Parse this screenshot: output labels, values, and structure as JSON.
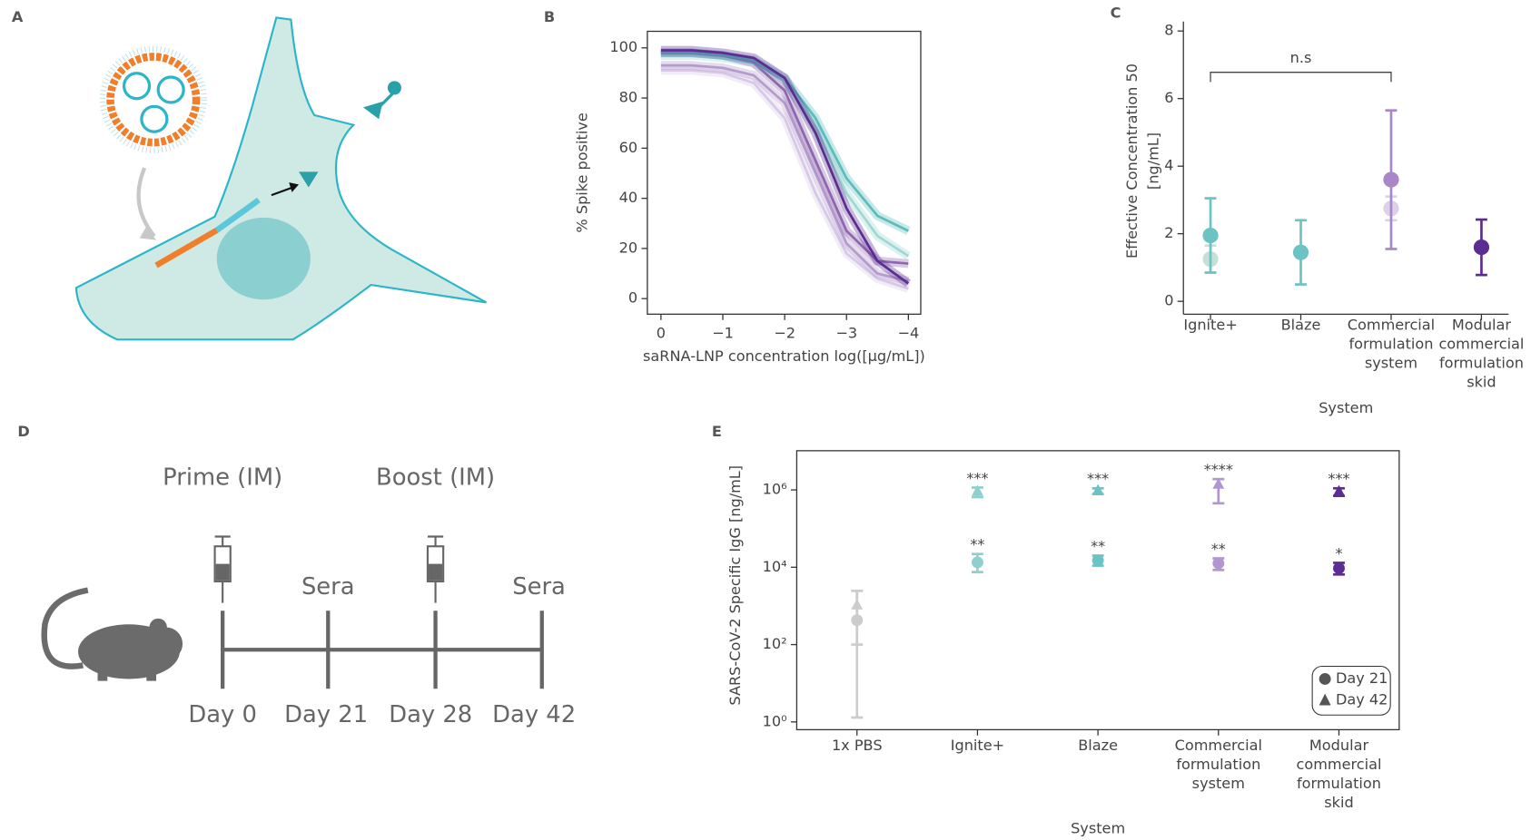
{
  "panel_labels": [
    "A",
    "B",
    "C",
    "D",
    "E"
  ],
  "timeline": {
    "prime": "Prime (IM)",
    "boost": "Boost (IM)",
    "sera": [
      "Sera",
      "Sera"
    ],
    "days": [
      "Day 0",
      "Day 21",
      "Day 28",
      "Day 42"
    ]
  },
  "chart_data": [
    {
      "type": "line",
      "xlabel": "saRNA-LNP concentration log([µg/mL])",
      "ylabel": "% Spike positive",
      "x": [
        0,
        -0.5,
        -1,
        -1.5,
        -2,
        -2.5,
        -3,
        -3.5,
        -4
      ],
      "xlim": [
        0.22,
        -4.2
      ],
      "xticks": [
        0,
        {
          "value": -1,
          "label": "−1"
        },
        {
          "value": -2,
          "label": "−2"
        },
        {
          "value": -3,
          "label": "−3"
        },
        {
          "value": -4,
          "label": "−4"
        }
      ],
      "ylim": [
        -6.2,
        106.6
      ],
      "yticks": [
        0,
        20,
        40,
        60,
        80,
        100
      ],
      "series": [
        {
          "color": "#d6c8e6",
          "values": [
            91,
            91,
            90,
            86,
            72,
            42,
            18,
            8,
            4
          ]
        },
        {
          "color": "#b59acd",
          "values": [
            93,
            93,
            92,
            89,
            78,
            50,
            22,
            10,
            7
          ]
        },
        {
          "color": "#9fd8d3",
          "values": [
            97,
            97,
            96,
            94,
            87,
            68,
            42,
            25,
            17
          ]
        },
        {
          "color": "#8e66b0",
          "values": [
            98,
            98,
            97,
            94,
            83,
            55,
            27,
            15,
            14
          ]
        },
        {
          "color": "#5cbcbc",
          "values": [
            98,
            98,
            97,
            95,
            88,
            72,
            48,
            33,
            27
          ]
        },
        {
          "color": "#5c2d91",
          "values": [
            99,
            99,
            98,
            96,
            88,
            66,
            36,
            15,
            6
          ]
        }
      ]
    },
    {
      "type": "errorbar",
      "xlabel": "System",
      "ylabel": [
        "Effective Concentration 50",
        "[ng/mL]"
      ],
      "categories": [
        [
          "Ignite+"
        ],
        [
          "Blaze"
        ],
        [
          "Commercial",
          "formulation",
          "system"
        ],
        [
          "Modular",
          "commercial",
          "formulation",
          "skid"
        ]
      ],
      "ylim": [
        -0.38,
        8.28
      ],
      "yticks": [
        0,
        2,
        4,
        6,
        8
      ],
      "annotation": "n.s",
      "series": [
        {
          "marker": "circle",
          "colors": [
            "#c6e0d6",
            null,
            "#ddd0eb",
            null
          ],
          "values": [
            1.25,
            null,
            2.75,
            null
          ],
          "errors": [
            0.4,
            null,
            0.35,
            null
          ]
        },
        {
          "marker": "circle",
          "colors": [
            "#6cc3c3",
            "#6cc3c3",
            "#a886c8",
            "#5c2d91"
          ],
          "values": [
            1.95,
            1.45,
            3.6,
            1.6
          ],
          "errors": [
            1.1,
            0.95,
            2.05,
            0.82
          ]
        }
      ]
    },
    {
      "type": "errorbar",
      "yscale": "log",
      "xlabel": "System",
      "ylabel": "SARS-CoV-2 Specific IgG [ng/mL]",
      "categories": [
        [
          "1x PBS"
        ],
        [
          "Ignite+"
        ],
        [
          "Blaze"
        ],
        [
          "Commercial",
          "formulation",
          "system"
        ],
        [
          "Modular",
          "commercial",
          "formulation",
          "skid"
        ]
      ],
      "ylim": [
        0.63,
        10300000
      ],
      "yticks": [
        {
          "value": 1,
          "label": "10⁰"
        },
        {
          "value": 100,
          "label": "10²"
        },
        {
          "value": 10000,
          "label": "10⁴"
        },
        {
          "value": 1000000,
          "label": "10⁶"
        }
      ],
      "legend": "lower right",
      "series": [
        {
          "name": "Day 21",
          "marker": "circle",
          "color": "#555555",
          "colors": [
            "#cccccc",
            "#8fd0cf",
            "#6cc3c3",
            "#b196cf",
            "#5c2d91"
          ],
          "values": [
            427,
            13400,
            15000,
            12600,
            9400
          ],
          "low": [
            1.3,
            7500,
            11000,
            8500,
            6500
          ],
          "high": [
            2450,
            22000,
            20000,
            17000,
            13000
          ],
          "sig": [
            null,
            "**",
            "**",
            "**",
            "*"
          ]
        },
        {
          "name": "Day 42",
          "marker": "triangle",
          "color": "#555555",
          "colors": [
            "#cccccc",
            "#8fd0cf",
            "#6cc3c3",
            "#b196cf",
            "#5c2d91"
          ],
          "values": [
            1020,
            890000,
            940000,
            1350000,
            890000
          ],
          "low": [
            100,
            650000,
            780000,
            450000,
            700000
          ],
          "high": [
            2450,
            1150000,
            1100000,
            1900000,
            1100000
          ],
          "sig": [
            null,
            "***",
            "***",
            "****",
            "***"
          ]
        }
      ]
    }
  ]
}
